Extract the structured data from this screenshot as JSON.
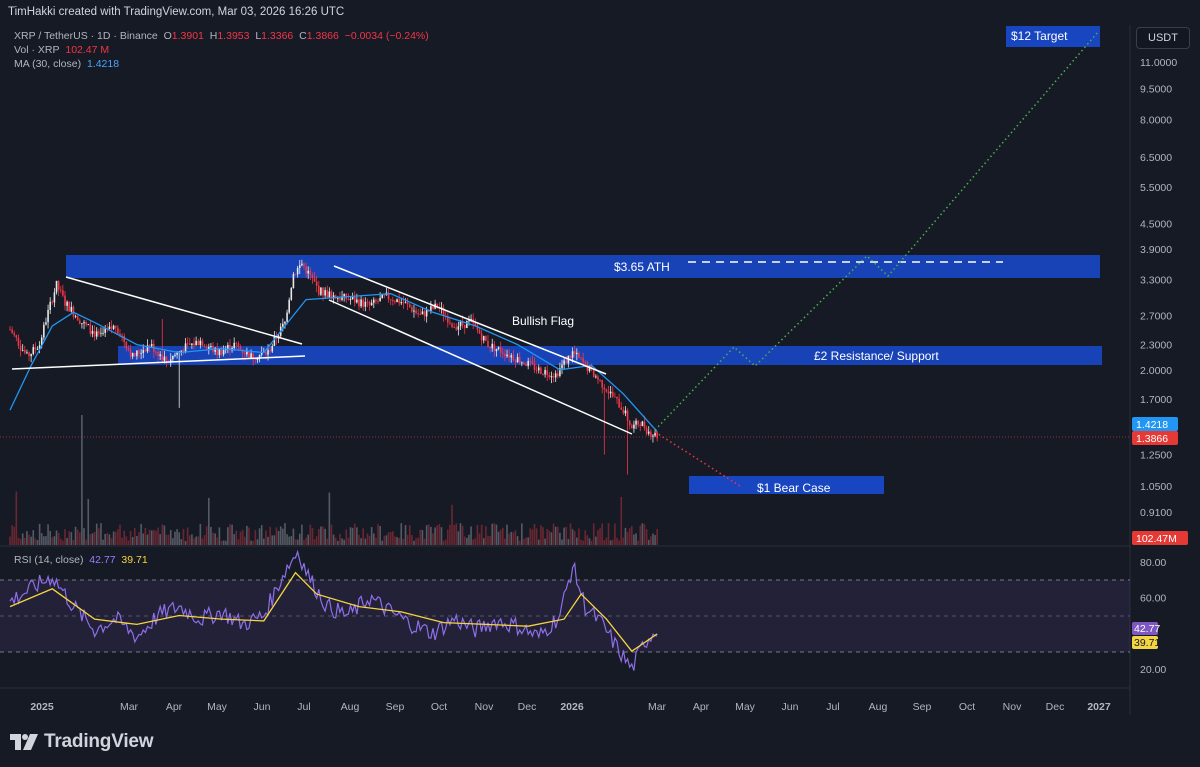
{
  "header": {
    "attribution": "TimHakki created with TradingView.com, Mar 03, 2026 16:26 UTC"
  },
  "legend": {
    "symbol": "XRP / TetherUS · 1D · Binance",
    "ohlc": {
      "o_label": "O",
      "o": "1.3901",
      "h_label": "H",
      "h": "1.3953",
      "l_label": "L",
      "l": "1.3366",
      "c_label": "C",
      "c": "1.3866",
      "change": "−0.0034 (−0.24%)"
    },
    "vol_label": "Vol · XRP",
    "vol_value": "102.47 M",
    "ma_label": "MA (30, close)",
    "ma_value": "1.4218",
    "rsi_label": "RSI (14, close)",
    "rsi_value": "42.77",
    "rsi_ma_value": "39.71"
  },
  "currency_button": "USDT",
  "logo_text": "TradingView",
  "colors": {
    "background": "#161a25",
    "zone_blue": "#1848c8",
    "candle_up": "#e8e8e8",
    "candle_down": "#f23645",
    "ma_line": "#2196f3",
    "rsi_line": "#8e6fe8",
    "rsi_ma": "#f5d442",
    "bull_path": "#4caf50",
    "bear_path": "#f23645",
    "last_price_tag": "#e53935",
    "ma_price_tag": "#2196f3"
  },
  "chart_data": {
    "type": "candlestick",
    "symbol": "XRP / TetherUS",
    "interval": "1D",
    "price_scale": "log",
    "y_ticks": [
      "11.0000",
      "9.5000",
      "8.0000",
      "6.5000",
      "5.5000",
      "4.5000",
      "3.9000",
      "3.3000",
      "2.7000",
      "2.3000",
      "2.0000",
      "1.7000",
      "1.2500",
      "1.0500",
      "0.9100"
    ],
    "x_ticks": [
      "2025",
      "Mar",
      "Apr",
      "May",
      "Jun",
      "Jul",
      "Aug",
      "Sep",
      "Oct",
      "Nov",
      "Dec",
      "2026",
      "Mar",
      "Apr",
      "May",
      "Jun",
      "Jul",
      "Aug",
      "Sep",
      "Oct",
      "Nov",
      "Dec",
      "2027"
    ],
    "last_price": "1.3866",
    "ma_price": "1.4218",
    "volume_last": "102.47M",
    "price_path": [
      [
        0,
        2.5
      ],
      [
        8,
        2.15
      ],
      [
        14,
        2.3
      ],
      [
        22,
        3.2
      ],
      [
        26,
        2.9
      ],
      [
        34,
        2.6
      ],
      [
        42,
        2.4
      ],
      [
        50,
        2.55
      ],
      [
        58,
        2.15
      ],
      [
        66,
        2.3
      ],
      [
        74,
        2.1
      ],
      [
        82,
        2.25
      ],
      [
        90,
        2.35
      ],
      [
        98,
        2.2
      ],
      [
        106,
        2.3
      ],
      [
        114,
        2.15
      ],
      [
        122,
        2.2
      ],
      [
        130,
        2.6
      ],
      [
        134,
        3.4
      ],
      [
        138,
        3.6
      ],
      [
        146,
        3.1
      ],
      [
        154,
        3.0
      ],
      [
        162,
        2.95
      ],
      [
        170,
        2.85
      ],
      [
        178,
        3.0
      ],
      [
        186,
        2.9
      ],
      [
        194,
        2.7
      ],
      [
        202,
        2.85
      ],
      [
        210,
        2.55
      ],
      [
        218,
        2.6
      ],
      [
        226,
        2.3
      ],
      [
        234,
        2.2
      ],
      [
        242,
        2.1
      ],
      [
        250,
        2.0
      ],
      [
        258,
        1.95
      ],
      [
        266,
        2.2
      ],
      [
        274,
        2.0
      ],
      [
        282,
        1.8
      ],
      [
        290,
        1.6
      ],
      [
        294,
        1.45
      ],
      [
        298,
        1.5
      ],
      [
        302,
        1.42
      ],
      [
        306,
        1.39
      ]
    ],
    "ma30_path": [
      [
        0,
        1.6
      ],
      [
        10,
        2.05
      ],
      [
        20,
        2.55
      ],
      [
        30,
        2.75
      ],
      [
        40,
        2.6
      ],
      [
        60,
        2.3
      ],
      [
        80,
        2.2
      ],
      [
        100,
        2.25
      ],
      [
        120,
        2.2
      ],
      [
        130,
        2.55
      ],
      [
        140,
        2.95
      ],
      [
        160,
        3.0
      ],
      [
        180,
        3.05
      ],
      [
        200,
        2.75
      ],
      [
        220,
        2.55
      ],
      [
        240,
        2.3
      ],
      [
        260,
        2.0
      ],
      [
        275,
        2.05
      ],
      [
        290,
        1.75
      ],
      [
        306,
        1.42
      ]
    ],
    "rsi_ticks": [
      "80.00",
      "60.00",
      "20.00"
    ],
    "rsi_bands": [
      70,
      50,
      30
    ],
    "rsi_path": [
      [
        0,
        58
      ],
      [
        10,
        65
      ],
      [
        20,
        72
      ],
      [
        30,
        55
      ],
      [
        40,
        42
      ],
      [
        50,
        48
      ],
      [
        60,
        38
      ],
      [
        70,
        50
      ],
      [
        80,
        55
      ],
      [
        90,
        48
      ],
      [
        100,
        52
      ],
      [
        110,
        45
      ],
      [
        120,
        50
      ],
      [
        130,
        75
      ],
      [
        136,
        86
      ],
      [
        142,
        70
      ],
      [
        150,
        55
      ],
      [
        160,
        50
      ],
      [
        170,
        60
      ],
      [
        180,
        52
      ],
      [
        190,
        45
      ],
      [
        200,
        40
      ],
      [
        210,
        48
      ],
      [
        220,
        42
      ],
      [
        230,
        47
      ],
      [
        240,
        44
      ],
      [
        250,
        38
      ],
      [
        260,
        50
      ],
      [
        266,
        78
      ],
      [
        272,
        55
      ],
      [
        280,
        45
      ],
      [
        288,
        30
      ],
      [
        294,
        20
      ],
      [
        300,
        35
      ],
      [
        306,
        42.77
      ]
    ],
    "rsi_ma_path": [
      [
        0,
        55
      ],
      [
        20,
        65
      ],
      [
        40,
        48
      ],
      [
        60,
        45
      ],
      [
        80,
        50
      ],
      [
        100,
        48
      ],
      [
        120,
        47
      ],
      [
        135,
        74
      ],
      [
        145,
        62
      ],
      [
        165,
        55
      ],
      [
        185,
        52
      ],
      [
        205,
        46
      ],
      [
        225,
        45
      ],
      [
        245,
        44
      ],
      [
        262,
        48
      ],
      [
        270,
        62
      ],
      [
        282,
        48
      ],
      [
        294,
        30
      ],
      [
        306,
        39.71
      ]
    ]
  },
  "annotations": {
    "target_label": "$12 Target",
    "ath_label": "$3.65 ATH",
    "flag_label": "Bullish Flag",
    "resistance_label": "£2 Resistance/ Support",
    "bear_label": "$1 Bear Case"
  }
}
